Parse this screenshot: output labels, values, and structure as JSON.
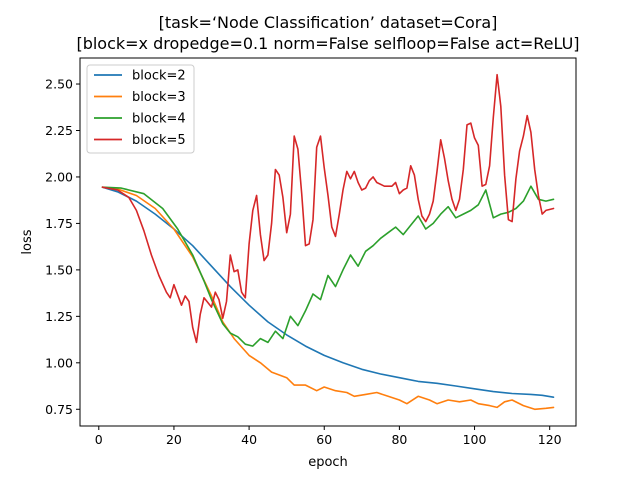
{
  "chart_data": {
    "type": "line",
    "title": "[task=‘Node Classification’ dataset=Cora]",
    "subtitle": "[block=x dropedge=0.1 norm=False selfloop=False act=ReLU]",
    "xlabel": "epoch",
    "ylabel": "loss",
    "xlim": [
      -5,
      127
    ],
    "ylim": [
      0.66,
      2.64
    ],
    "xticks": [
      0,
      20,
      40,
      60,
      80,
      100,
      120
    ],
    "yticks": [
      0.75,
      1.0,
      1.25,
      1.5,
      1.75,
      2.0,
      2.25,
      2.5
    ],
    "ytick_labels": [
      "0.75",
      "1.00",
      "1.25",
      "1.50",
      "1.75",
      "2.00",
      "2.25",
      "2.50"
    ],
    "grid": false,
    "legend_position": "upper-left",
    "series": [
      {
        "name": "block=2",
        "color": "#1f77b4",
        "points": [
          [
            1,
            1.945
          ],
          [
            5,
            1.92
          ],
          [
            10,
            1.87
          ],
          [
            15,
            1.8
          ],
          [
            20,
            1.72
          ],
          [
            25,
            1.63
          ],
          [
            30,
            1.52
          ],
          [
            35,
            1.41
          ],
          [
            40,
            1.31
          ],
          [
            45,
            1.22
          ],
          [
            50,
            1.15
          ],
          [
            55,
            1.09
          ],
          [
            60,
            1.04
          ],
          [
            65,
            1.0
          ],
          [
            70,
            0.965
          ],
          [
            75,
            0.94
          ],
          [
            80,
            0.92
          ],
          [
            85,
            0.9
          ],
          [
            90,
            0.89
          ],
          [
            95,
            0.875
          ],
          [
            100,
            0.86
          ],
          [
            105,
            0.845
          ],
          [
            110,
            0.835
          ],
          [
            115,
            0.83
          ],
          [
            118,
            0.825
          ],
          [
            121,
            0.815
          ]
        ]
      },
      {
        "name": "block=3",
        "color": "#ff7f0e",
        "points": [
          [
            1,
            1.945
          ],
          [
            5,
            1.935
          ],
          [
            10,
            1.9
          ],
          [
            15,
            1.83
          ],
          [
            20,
            1.72
          ],
          [
            25,
            1.57
          ],
          [
            30,
            1.36
          ],
          [
            33,
            1.22
          ],
          [
            36,
            1.13
          ],
          [
            40,
            1.04
          ],
          [
            43,
            1.0
          ],
          [
            46,
            0.95
          ],
          [
            50,
            0.92
          ],
          [
            52,
            0.88
          ],
          [
            55,
            0.88
          ],
          [
            58,
            0.85
          ],
          [
            60,
            0.87
          ],
          [
            63,
            0.85
          ],
          [
            66,
            0.84
          ],
          [
            68,
            0.82
          ],
          [
            71,
            0.83
          ],
          [
            74,
            0.84
          ],
          [
            77,
            0.82
          ],
          [
            80,
            0.8
          ],
          [
            82,
            0.78
          ],
          [
            85,
            0.82
          ],
          [
            88,
            0.8
          ],
          [
            90,
            0.78
          ],
          [
            93,
            0.8
          ],
          [
            96,
            0.79
          ],
          [
            99,
            0.8
          ],
          [
            101,
            0.78
          ],
          [
            104,
            0.77
          ],
          [
            106,
            0.76
          ],
          [
            108,
            0.79
          ],
          [
            110,
            0.8
          ],
          [
            113,
            0.77
          ],
          [
            116,
            0.75
          ],
          [
            119,
            0.755
          ],
          [
            121,
            0.76
          ]
        ]
      },
      {
        "name": "block=4",
        "color": "#2ca02c",
        "points": [
          [
            1,
            1.945
          ],
          [
            6,
            1.94
          ],
          [
            12,
            1.91
          ],
          [
            17,
            1.83
          ],
          [
            21,
            1.72
          ],
          [
            25,
            1.58
          ],
          [
            28,
            1.44
          ],
          [
            30,
            1.34
          ],
          [
            33,
            1.21
          ],
          [
            35,
            1.16
          ],
          [
            37,
            1.14
          ],
          [
            39,
            1.1
          ],
          [
            41,
            1.09
          ],
          [
            43,
            1.13
          ],
          [
            45,
            1.11
          ],
          [
            47,
            1.17
          ],
          [
            49,
            1.13
          ],
          [
            51,
            1.25
          ],
          [
            53,
            1.2
          ],
          [
            55,
            1.28
          ],
          [
            57,
            1.37
          ],
          [
            59,
            1.34
          ],
          [
            61,
            1.47
          ],
          [
            63,
            1.41
          ],
          [
            65,
            1.5
          ],
          [
            67,
            1.58
          ],
          [
            69,
            1.52
          ],
          [
            71,
            1.6
          ],
          [
            73,
            1.63
          ],
          [
            75,
            1.67
          ],
          [
            77,
            1.7
          ],
          [
            79,
            1.73
          ],
          [
            81,
            1.69
          ],
          [
            83,
            1.74
          ],
          [
            85,
            1.79
          ],
          [
            87,
            1.72
          ],
          [
            89,
            1.75
          ],
          [
            91,
            1.8
          ],
          [
            93,
            1.84
          ],
          [
            95,
            1.78
          ],
          [
            97,
            1.8
          ],
          [
            99,
            1.82
          ],
          [
            101,
            1.85
          ],
          [
            103,
            1.93
          ],
          [
            105,
            1.78
          ],
          [
            107,
            1.8
          ],
          [
            109,
            1.81
          ],
          [
            111,
            1.83
          ],
          [
            113,
            1.87
          ],
          [
            115,
            1.95
          ],
          [
            117,
            1.88
          ],
          [
            119,
            1.87
          ],
          [
            121,
            1.88
          ]
        ]
      },
      {
        "name": "block=5",
        "color": "#d62728",
        "points": [
          [
            1,
            1.945
          ],
          [
            5,
            1.93
          ],
          [
            8,
            1.89
          ],
          [
            10,
            1.82
          ],
          [
            12,
            1.71
          ],
          [
            14,
            1.58
          ],
          [
            16,
            1.47
          ],
          [
            18,
            1.38
          ],
          [
            19,
            1.35
          ],
          [
            20,
            1.42
          ],
          [
            22,
            1.31
          ],
          [
            23,
            1.36
          ],
          [
            24,
            1.33
          ],
          [
            25,
            1.19
          ],
          [
            26,
            1.11
          ],
          [
            27,
            1.26
          ],
          [
            28,
            1.35
          ],
          [
            30,
            1.3
          ],
          [
            31,
            1.38
          ],
          [
            32,
            1.34
          ],
          [
            33,
            1.24
          ],
          [
            34,
            1.33
          ],
          [
            35,
            1.58
          ],
          [
            36,
            1.49
          ],
          [
            37,
            1.5
          ],
          [
            38,
            1.38
          ],
          [
            39,
            1.35
          ],
          [
            40,
            1.64
          ],
          [
            41,
            1.82
          ],
          [
            42,
            1.9
          ],
          [
            43,
            1.69
          ],
          [
            44,
            1.55
          ],
          [
            45,
            1.58
          ],
          [
            46,
            1.75
          ],
          [
            47,
            2.04
          ],
          [
            48,
            2.01
          ],
          [
            49,
            1.89
          ],
          [
            50,
            1.7
          ],
          [
            51,
            1.8
          ],
          [
            52,
            2.22
          ],
          [
            53,
            2.15
          ],
          [
            54,
            1.91
          ],
          [
            55,
            1.63
          ],
          [
            56,
            1.64
          ],
          [
            57,
            1.77
          ],
          [
            58,
            2.16
          ],
          [
            59,
            2.22
          ],
          [
            60,
            2.05
          ],
          [
            61,
            1.9
          ],
          [
            62,
            1.73
          ],
          [
            63,
            1.68
          ],
          [
            64,
            1.8
          ],
          [
            65,
            1.93
          ],
          [
            66,
            2.03
          ],
          [
            67,
            1.99
          ],
          [
            68,
            2.03
          ],
          [
            69,
            1.97
          ],
          [
            70,
            1.93
          ],
          [
            71,
            1.94
          ],
          [
            72,
            1.98
          ],
          [
            73,
            2.0
          ],
          [
            74,
            1.97
          ],
          [
            76,
            1.95
          ],
          [
            78,
            1.95
          ],
          [
            79,
            1.97
          ],
          [
            80,
            1.91
          ],
          [
            81,
            1.93
          ],
          [
            82,
            1.94
          ],
          [
            83,
            2.06
          ],
          [
            84,
            2.01
          ],
          [
            85,
            1.88
          ],
          [
            86,
            1.79
          ],
          [
            87,
            1.76
          ],
          [
            88,
            1.8
          ],
          [
            89,
            1.87
          ],
          [
            90,
            2.03
          ],
          [
            91,
            2.2
          ],
          [
            92,
            2.1
          ],
          [
            93,
            1.98
          ],
          [
            94,
            1.88
          ],
          [
            95,
            1.82
          ],
          [
            96,
            1.88
          ],
          [
            97,
            2.04
          ],
          [
            98,
            2.28
          ],
          [
            99,
            2.29
          ],
          [
            100,
            2.21
          ],
          [
            101,
            2.17
          ],
          [
            102,
            1.95
          ],
          [
            103,
            1.96
          ],
          [
            104,
            2.06
          ],
          [
            105,
            2.32
          ],
          [
            106,
            2.55
          ],
          [
            107,
            2.38
          ],
          [
            108,
            2.01
          ],
          [
            109,
            1.77
          ],
          [
            110,
            1.76
          ],
          [
            111,
            1.99
          ],
          [
            112,
            2.14
          ],
          [
            113,
            2.22
          ],
          [
            114,
            2.33
          ],
          [
            115,
            2.24
          ],
          [
            116,
            2.04
          ],
          [
            117,
            1.9
          ],
          [
            118,
            1.8
          ],
          [
            119,
            1.82
          ],
          [
            121,
            1.83
          ]
        ]
      }
    ]
  }
}
